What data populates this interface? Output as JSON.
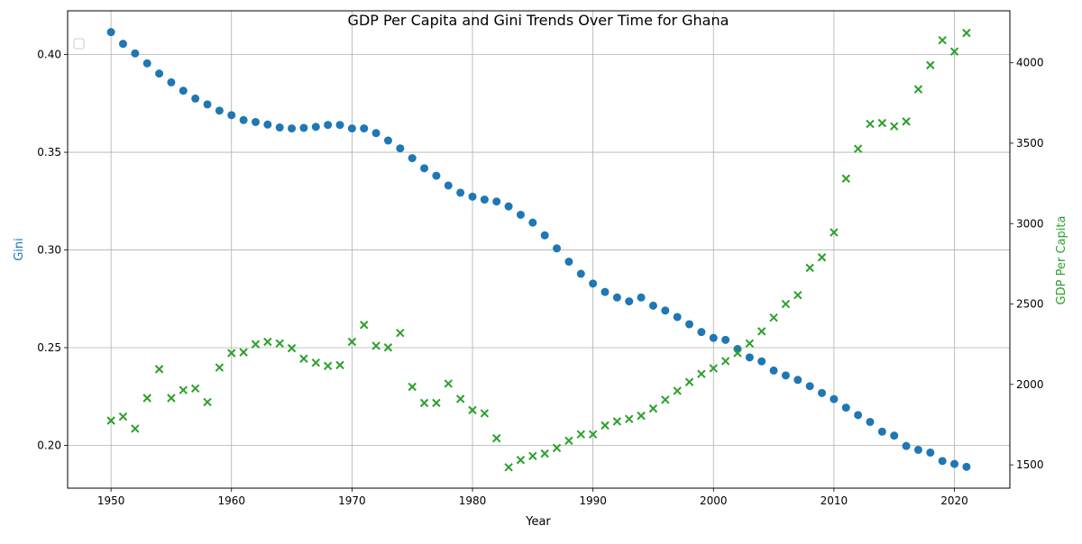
{
  "chart_data": {
    "type": "scatter",
    "title": "GDP Per Capita and Gini Trends Over Time for Ghana",
    "xlabel": "Year",
    "ylabel_left": "Gini",
    "ylabel_right": "GDP Per Capita",
    "xlim": [
      1946.4,
      2024.6
    ],
    "ylim_left": [
      0.1781,
      0.4224
    ],
    "ylim_right": [
      1355,
      4323
    ],
    "x_ticks": [
      1950,
      1960,
      1970,
      1980,
      1990,
      2000,
      2010,
      2020
    ],
    "y_ticks_left": [
      0.2,
      0.25,
      0.3,
      0.35,
      0.4
    ],
    "y_ticks_left_labels": [
      "0.20",
      "0.25",
      "0.30",
      "0.35",
      "0.40"
    ],
    "y_ticks_right": [
      1500,
      2000,
      2500,
      3000,
      3500,
      4000
    ],
    "grid": true,
    "legend": {
      "placement": "top-left",
      "entries": []
    },
    "colors": {
      "gini": "#1f77b4",
      "gdp": "#2ca02c",
      "grid": "#b0b0b0",
      "axis": "#000000"
    },
    "x": [
      1950,
      1951,
      1952,
      1953,
      1954,
      1955,
      1956,
      1957,
      1958,
      1959,
      1960,
      1961,
      1962,
      1963,
      1964,
      1965,
      1966,
      1967,
      1968,
      1969,
      1970,
      1971,
      1972,
      1973,
      1974,
      1975,
      1976,
      1977,
      1978,
      1979,
      1980,
      1981,
      1982,
      1983,
      1984,
      1985,
      1986,
      1987,
      1988,
      1989,
      1990,
      1991,
      1992,
      1993,
      1994,
      1995,
      1996,
      1997,
      1998,
      1999,
      2000,
      2001,
      2002,
      2003,
      2004,
      2005,
      2006,
      2007,
      2008,
      2009,
      2010,
      2011,
      2012,
      2013,
      2014,
      2015,
      2016,
      2017,
      2018,
      2019,
      2020,
      2021
    ],
    "series": [
      {
        "name": "",
        "axis": "left",
        "marker": "circle",
        "values": [
          0.4115,
          0.4055,
          0.4006,
          0.3955,
          0.3903,
          0.3858,
          0.3815,
          0.3775,
          0.3745,
          0.3713,
          0.369,
          0.3665,
          0.3655,
          0.3642,
          0.3627,
          0.3622,
          0.3625,
          0.363,
          0.364,
          0.364,
          0.3622,
          0.3622,
          0.3598,
          0.356,
          0.352,
          0.347,
          0.3418,
          0.338,
          0.333,
          0.3293,
          0.3273,
          0.3258,
          0.3248,
          0.3223,
          0.318,
          0.314,
          0.3075,
          0.3008,
          0.294,
          0.2878,
          0.2828,
          0.2785,
          0.2757,
          0.2737,
          0.2757,
          0.2715,
          0.269,
          0.2657,
          0.262,
          0.258,
          0.255,
          0.254,
          0.2493,
          0.245,
          0.243,
          0.2383,
          0.2358,
          0.2335,
          0.2303,
          0.2268,
          0.2237,
          0.2193,
          0.2155,
          0.212,
          0.207,
          0.205,
          0.1997,
          0.1977,
          0.1963,
          0.192,
          0.1905,
          0.189
        ]
      },
      {
        "name": "",
        "axis": "right",
        "marker": "x",
        "values": [
          1775,
          1800,
          1725,
          1915,
          2095,
          1915,
          1965,
          1975,
          1890,
          2105,
          2195,
          2200,
          2250,
          2265,
          2255,
          2225,
          2160,
          2135,
          2115,
          2120,
          2265,
          2370,
          2240,
          2230,
          2320,
          1985,
          1885,
          1885,
          2005,
          1910,
          1840,
          1820,
          1665,
          1485,
          1530,
          1555,
          1570,
          1605,
          1650,
          1690,
          1690,
          1745,
          1770,
          1785,
          1805,
          1850,
          1905,
          1960,
          2015,
          2065,
          2100,
          2145,
          2195,
          2255,
          2330,
          2415,
          2500,
          2555,
          2725,
          2790,
          2945,
          3280,
          3465,
          3620,
          3625,
          3605,
          3635,
          3835,
          3985,
          4140,
          4070,
          4185
        ]
      }
    ]
  }
}
